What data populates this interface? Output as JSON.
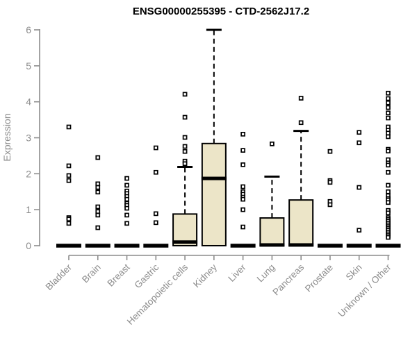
{
  "page": {
    "background": "#ffffff"
  },
  "chart_data": {
    "type": "boxplot",
    "title": "ENSG00000255395 - CTD-2562J17.2",
    "xlabel": "",
    "ylabel": "Expression",
    "ylim": [
      0,
      6
    ],
    "yticks": [
      0,
      1,
      2,
      3,
      4,
      5,
      6
    ],
    "grid": false,
    "legend": "none",
    "colors": {
      "box_fill": "#ece5c8",
      "box_stroke": "#000000",
      "median_color": "#000000",
      "whisker_color": "#000000",
      "outlier_stroke": "#000000",
      "outlier_fill": "#ffffff",
      "axis_color": "#8c8c8c",
      "title_color": "#000000"
    },
    "categories": [
      "Bladder",
      "Brain",
      "Breast",
      "Gastric",
      "Hematopoietic cells",
      "Kidney",
      "Liver",
      "Lung",
      "Pancreas",
      "Prostate",
      "Skin",
      "Unknown / Other"
    ],
    "boxes": [
      {
        "category": "Bladder",
        "q1": 0,
        "median": 0,
        "q3": 0,
        "whisker_low": 0,
        "whisker_high": 0,
        "outliers": [
          3.3,
          2.22,
          1.95,
          1.81,
          0.78,
          0.74,
          0.62
        ]
      },
      {
        "category": "Brain",
        "q1": 0,
        "median": 0,
        "q3": 0,
        "whisker_low": 0,
        "whisker_high": 0,
        "outliers": [
          2.45,
          1.72,
          1.62,
          1.49,
          1.08,
          0.95,
          0.85,
          0.5
        ]
      },
      {
        "category": "Breast",
        "q1": 0,
        "median": 0,
        "q3": 0,
        "whisker_low": 0,
        "whisker_high": 0,
        "outliers": [
          1.87,
          1.68,
          1.52,
          1.45,
          1.37,
          1.29,
          1.18,
          1.12,
          1.04,
          0.85,
          0.62
        ]
      },
      {
        "category": "Gastric",
        "q1": 0,
        "median": 0,
        "q3": 0,
        "whisker_low": 0,
        "whisker_high": 0,
        "outliers": [
          2.72,
          2.04,
          0.89,
          0.64
        ]
      },
      {
        "category": "Hematopoietic cells",
        "q1": 0,
        "median": 0.1,
        "q3": 0.88,
        "whisker_low": 0,
        "whisker_high": 2.19,
        "outliers": [
          4.21,
          3.57,
          3.01,
          2.76,
          2.62,
          2.35,
          2.28
        ]
      },
      {
        "category": "Kidney",
        "q1": 0,
        "median": 1.87,
        "q3": 2.84,
        "whisker_low": 0,
        "whisker_high": 6.0,
        "outliers": []
      },
      {
        "category": "Liver",
        "q1": 0,
        "median": 0,
        "q3": 0,
        "whisker_low": 0,
        "whisker_high": 0,
        "outliers": [
          3.1,
          2.65,
          2.25,
          1.64,
          1.5,
          1.43,
          1.35,
          1.29,
          1.0,
          0.52
        ]
      },
      {
        "category": "Lung",
        "q1": 0,
        "median": 0.02,
        "q3": 0.77,
        "whisker_low": 0,
        "whisker_high": 1.92,
        "outliers": [
          2.83
        ]
      },
      {
        "category": "Pancreas",
        "q1": 0,
        "median": 0.02,
        "q3": 1.27,
        "whisker_low": 0,
        "whisker_high": 3.19,
        "outliers": [
          4.1,
          3.42
        ]
      },
      {
        "category": "Prostate",
        "q1": 0,
        "median": 0,
        "q3": 0,
        "whisker_low": 0,
        "whisker_high": 0,
        "outliers": [
          2.62,
          1.81,
          1.76,
          1.23,
          1.14
        ]
      },
      {
        "category": "Skin",
        "q1": 0,
        "median": 0,
        "q3": 0,
        "whisker_low": 0,
        "whisker_high": 0,
        "outliers": [
          3.15,
          2.86,
          1.62,
          0.43
        ]
      },
      {
        "category": "Unknown / Other",
        "q1": 0,
        "median": 0,
        "q3": 0,
        "whisker_low": 0,
        "whisker_high": 0,
        "outliers": [
          4.24,
          4.09,
          3.97,
          3.84,
          3.69,
          3.55,
          3.3,
          3.21,
          3.13,
          3.03,
          2.68,
          2.63,
          2.39,
          2.3,
          2.24,
          2.04,
          1.68,
          1.5,
          1.39,
          1.31,
          1.27,
          1.2,
          0.98,
          0.91,
          0.78,
          0.73,
          0.68,
          0.63,
          0.58,
          0.53,
          0.48,
          0.43,
          0.38,
          0.33,
          0.28,
          0.23
        ]
      }
    ]
  }
}
